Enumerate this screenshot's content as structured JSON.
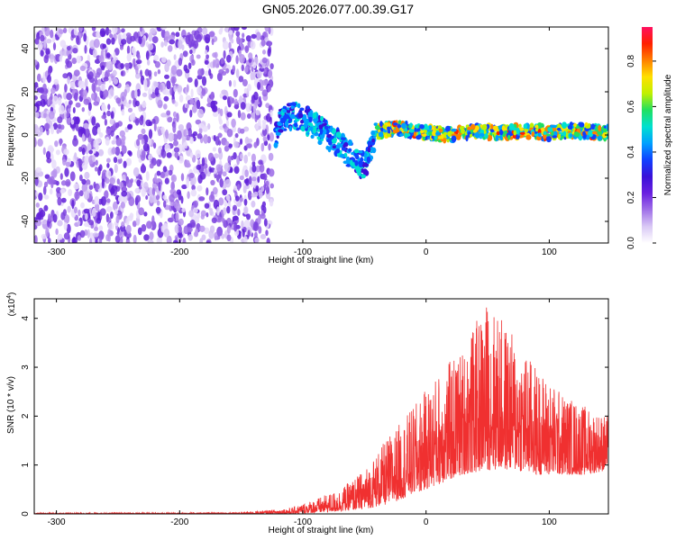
{
  "title": "GN05.2026.077.00.39.G17",
  "chart_data": [
    {
      "type": "heatmap",
      "xlabel": "Height of straight line (km)",
      "ylabel": "Frequency (Hz)",
      "xlim": [
        -318,
        148
      ],
      "ylim": [
        -50,
        50
      ],
      "xticks": [
        -300,
        -200,
        -100,
        0,
        100
      ],
      "yticks": [
        -40,
        -20,
        0,
        20,
        40
      ],
      "colorbar": {
        "label": "Normalized spectral amplitude",
        "range": [
          0.0,
          0.95
        ],
        "ticks": [
          0.0,
          0.2,
          0.4,
          0.6,
          0.8
        ],
        "colormap": [
          "#ffffff",
          "#d9c8f5",
          "#a070e8",
          "#6a20e0",
          "#3a10d8",
          "#1040ff",
          "#00a0ff",
          "#00e0d0",
          "#20e060",
          "#c0f000",
          "#ffe000",
          "#ff8000",
          "#ff2000",
          "#ff1060"
        ]
      },
      "noise_region_x": [
        -318,
        -125
      ],
      "signal_track": [
        {
          "x": -120,
          "f": 6
        },
        {
          "x": -110,
          "f": 9
        },
        {
          "x": -100,
          "f": 8
        },
        {
          "x": -90,
          "f": 4
        },
        {
          "x": -80,
          "f": 0
        },
        {
          "x": -70,
          "f": -4
        },
        {
          "x": -60,
          "f": -10
        },
        {
          "x": -50,
          "f": -15
        },
        {
          "x": -40,
          "f": 2
        },
        {
          "x": -20,
          "f": 3
        },
        {
          "x": 0,
          "f": 1
        },
        {
          "x": 20,
          "f": 0
        },
        {
          "x": 40,
          "f": 2
        },
        {
          "x": 60,
          "f": 1
        },
        {
          "x": 80,
          "f": 2
        },
        {
          "x": 100,
          "f": 1
        },
        {
          "x": 120,
          "f": 2
        },
        {
          "x": 148,
          "f": 1
        }
      ]
    },
    {
      "type": "line",
      "xlabel": "Height of straight line (km)",
      "ylabel": "SNR (10 * v/v)",
      "multiplier": "(x10",
      "multiplier_exp": "4",
      "xlim": [
        -318,
        148
      ],
      "ylim": [
        0,
        4.4
      ],
      "xticks": [
        -300,
        -200,
        -100,
        0,
        100
      ],
      "yticks": [
        0,
        1,
        2,
        3,
        4
      ],
      "color": "#f03030",
      "envelope": [
        {
          "x": -318,
          "low": 0.0,
          "high": 0.02
        },
        {
          "x": -150,
          "low": 0.0,
          "high": 0.03
        },
        {
          "x": -110,
          "low": 0.0,
          "high": 0.12
        },
        {
          "x": -90,
          "low": 0.02,
          "high": 0.3
        },
        {
          "x": -70,
          "low": 0.05,
          "high": 0.5
        },
        {
          "x": -50,
          "low": 0.1,
          "high": 0.9
        },
        {
          "x": -30,
          "low": 0.2,
          "high": 1.6
        },
        {
          "x": -10,
          "low": 0.4,
          "high": 2.2
        },
        {
          "x": 10,
          "low": 0.6,
          "high": 2.9
        },
        {
          "x": 30,
          "low": 0.8,
          "high": 3.4
        },
        {
          "x": 50,
          "low": 0.9,
          "high": 4.4
        },
        {
          "x": 70,
          "low": 0.9,
          "high": 3.7
        },
        {
          "x": 90,
          "low": 0.8,
          "high": 3.0
        },
        {
          "x": 110,
          "low": 0.8,
          "high": 2.5
        },
        {
          "x": 130,
          "low": 0.8,
          "high": 2.2
        },
        {
          "x": 148,
          "low": 0.9,
          "high": 2.0
        }
      ]
    }
  ]
}
